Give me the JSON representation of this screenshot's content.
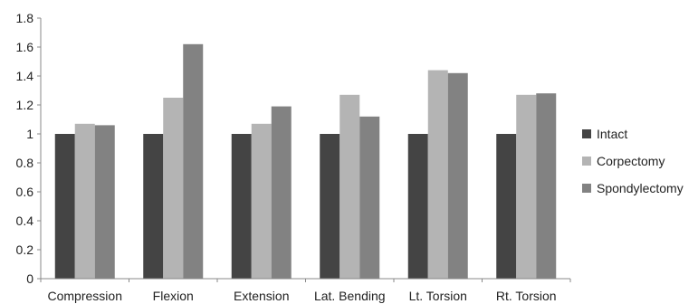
{
  "chart_data": {
    "type": "bar",
    "title": "",
    "xlabel": "",
    "ylabel": "",
    "categories": [
      "Compression",
      "Flexion",
      "Extension",
      "Lat. Bending",
      "Lt. Torsion",
      "Rt. Torsion"
    ],
    "series": [
      {
        "name": "Intact",
        "color": "#444444",
        "values": [
          1.0,
          1.0,
          1.0,
          1.0,
          1.0,
          1.0
        ]
      },
      {
        "name": "Corpectomy",
        "color": "#b4b4b4",
        "values": [
          1.07,
          1.25,
          1.07,
          1.27,
          1.44,
          1.27
        ]
      },
      {
        "name": "Spondylectomy",
        "color": "#828282",
        "values": [
          1.06,
          1.62,
          1.19,
          1.12,
          1.42,
          1.28
        ]
      }
    ],
    "ylim": [
      0,
      1.8
    ],
    "yticks": [
      "0",
      "0.2",
      "0.4",
      "0.6",
      "0.8",
      "1",
      "1.2",
      "1.4",
      "1.6",
      "1.8"
    ],
    "grid": false,
    "legend_position": "right"
  }
}
